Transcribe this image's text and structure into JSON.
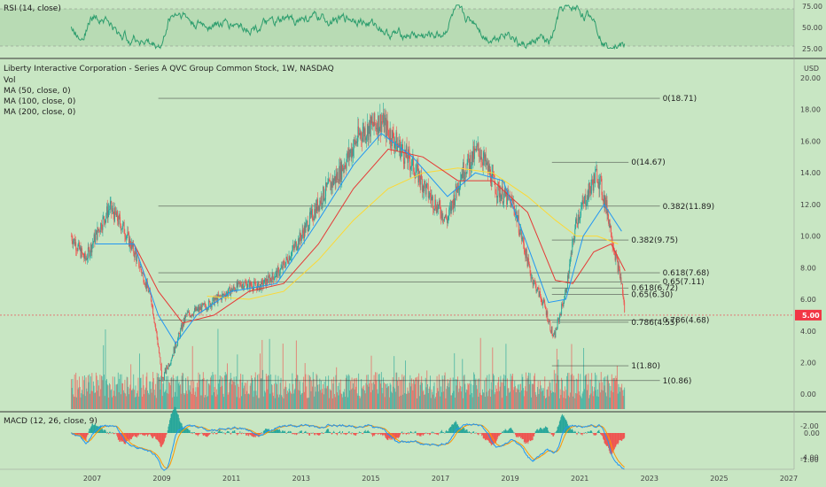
{
  "rsi": {
    "label": "RSI (14, close)",
    "ticks": [
      "75.00",
      "50.00",
      "25.00"
    ]
  },
  "main": {
    "title": "Liberty Interactive Corporation - Series A QVC Group Common Stock, 1W, NASDAQ",
    "indicators": [
      "Vol",
      "MA (50, close, 0)",
      "MA (100, close, 0)",
      "MA (200, close, 0)"
    ],
    "currency": "USD",
    "price_ticks": [
      "20.00",
      "18.00",
      "16.00",
      "14.00",
      "12.00",
      "10.00",
      "8.00",
      "6.00",
      "4.00",
      "2.00",
      "0.00",
      "-2.00",
      "-4.00"
    ],
    "last_price": "5.00"
  },
  "macd": {
    "label": "MACD (12, 26, close, 9)",
    "ticks": [
      "0.00",
      "-1.00"
    ]
  },
  "x_axis": {
    "ticks": [
      "2007",
      "2009",
      "2011",
      "2013",
      "2015",
      "2017",
      "2019",
      "2021",
      "2023",
      "2025",
      "2027"
    ]
  },
  "fib_labels": [
    "0(18.71)",
    "0(14.67)",
    "0.382(11.89)",
    "0.382(9.75)",
    "0.618(7.68)",
    "0.65(7.11)",
    "0.618(6.72)",
    "0.65(6.30)",
    "0.786(4.68)",
    "0.786(4.55)",
    "1(1.80)",
    "1(0.86)"
  ],
  "colors": {
    "background": "#c8e6c3",
    "candle_up": "#26a69a",
    "candle_down": "#ef5350",
    "ma50": "#2196f3",
    "ma100": "#e53935",
    "ma200": "#fdd835",
    "rsi_line": "#2e9e6e",
    "macd_line": "#2196f3",
    "signal_line": "#ff9800",
    "price_tag": "#f23645"
  },
  "chart_data": {
    "type": "line",
    "title": "Liberty Interactive Corporation - Series A QVC Group Common Stock, 1W, NASDAQ",
    "ylabel": "USD",
    "ylim": [
      -4.5,
      20
    ],
    "price_path": [
      {
        "x": 2006.4,
        "y": 10.0
      },
      {
        "x": 2006.8,
        "y": 8.5
      },
      {
        "x": 2007.2,
        "y": 10.5
      },
      {
        "x": 2007.5,
        "y": 11.8
      },
      {
        "x": 2007.9,
        "y": 10.5
      },
      {
        "x": 2008.3,
        "y": 8.5
      },
      {
        "x": 2008.7,
        "y": 6.0
      },
      {
        "x": 2008.9,
        "y": 3.0
      },
      {
        "x": 2009.0,
        "y": 0.86
      },
      {
        "x": 2009.3,
        "y": 2.5
      },
      {
        "x": 2009.7,
        "y": 5.0
      },
      {
        "x": 2010.2,
        "y": 5.5
      },
      {
        "x": 2010.8,
        "y": 6.3
      },
      {
        "x": 2011.3,
        "y": 7.0
      },
      {
        "x": 2011.8,
        "y": 6.8
      },
      {
        "x": 2012.4,
        "y": 7.8
      },
      {
        "x": 2013.0,
        "y": 10.0
      },
      {
        "x": 2013.6,
        "y": 12.5
      },
      {
        "x": 2014.1,
        "y": 14.0
      },
      {
        "x": 2014.7,
        "y": 16.5
      },
      {
        "x": 2015.3,
        "y": 17.3
      },
      {
        "x": 2015.7,
        "y": 16.0
      },
      {
        "x": 2016.2,
        "y": 14.5
      },
      {
        "x": 2016.7,
        "y": 12.5
      },
      {
        "x": 2017.2,
        "y": 11.0
      },
      {
        "x": 2017.6,
        "y": 14.0
      },
      {
        "x": 2018.1,
        "y": 15.5
      },
      {
        "x": 2018.6,
        "y": 13.0
      },
      {
        "x": 2019.1,
        "y": 12.0
      },
      {
        "x": 2019.6,
        "y": 7.5
      },
      {
        "x": 2020.0,
        "y": 5.5
      },
      {
        "x": 2020.25,
        "y": 3.5
      },
      {
        "x": 2020.6,
        "y": 6.5
      },
      {
        "x": 2020.9,
        "y": 11.0
      },
      {
        "x": 2021.2,
        "y": 12.5
      },
      {
        "x": 2021.5,
        "y": 14.0
      },
      {
        "x": 2021.8,
        "y": 11.5
      },
      {
        "x": 2022.0,
        "y": 9.0
      },
      {
        "x": 2022.2,
        "y": 7.0
      },
      {
        "x": 2022.3,
        "y": 5.0
      }
    ],
    "ma50": [
      {
        "x": 2007.1,
        "y": 9.5
      },
      {
        "x": 2008.2,
        "y": 9.5
      },
      {
        "x": 2008.9,
        "y": 5.0
      },
      {
        "x": 2009.4,
        "y": 3.2
      },
      {
        "x": 2010.0,
        "y": 5.0
      },
      {
        "x": 2011.0,
        "y": 6.5
      },
      {
        "x": 2012.3,
        "y": 7.0
      },
      {
        "x": 2013.5,
        "y": 11.0
      },
      {
        "x": 2014.5,
        "y": 14.5
      },
      {
        "x": 2015.3,
        "y": 16.5
      },
      {
        "x": 2016.2,
        "y": 15.0
      },
      {
        "x": 2017.2,
        "y": 12.5
      },
      {
        "x": 2018.0,
        "y": 14.0
      },
      {
        "x": 2018.8,
        "y": 13.5
      },
      {
        "x": 2019.4,
        "y": 10.0
      },
      {
        "x": 2020.1,
        "y": 5.8
      },
      {
        "x": 2020.6,
        "y": 6.0
      },
      {
        "x": 2021.1,
        "y": 10.0
      },
      {
        "x": 2021.7,
        "y": 12.0
      },
      {
        "x": 2022.2,
        "y": 10.3
      }
    ],
    "ma100": [
      {
        "x": 2008.2,
        "y": 9.5
      },
      {
        "x": 2008.9,
        "y": 6.5
      },
      {
        "x": 2009.6,
        "y": 4.5
      },
      {
        "x": 2010.5,
        "y": 5.0
      },
      {
        "x": 2011.5,
        "y": 6.5
      },
      {
        "x": 2012.5,
        "y": 7.0
      },
      {
        "x": 2013.5,
        "y": 9.5
      },
      {
        "x": 2014.5,
        "y": 13.0
      },
      {
        "x": 2015.5,
        "y": 15.5
      },
      {
        "x": 2016.5,
        "y": 15.0
      },
      {
        "x": 2017.5,
        "y": 13.5
      },
      {
        "x": 2018.5,
        "y": 13.5
      },
      {
        "x": 2019.5,
        "y": 11.5
      },
      {
        "x": 2020.3,
        "y": 7.2
      },
      {
        "x": 2020.8,
        "y": 7.0
      },
      {
        "x": 2021.4,
        "y": 9.0
      },
      {
        "x": 2021.9,
        "y": 9.5
      },
      {
        "x": 2022.3,
        "y": 7.8
      }
    ],
    "ma200": [
      {
        "x": 2010.3,
        "y": 6.2
      },
      {
        "x": 2011.5,
        "y": 6.0
      },
      {
        "x": 2012.5,
        "y": 6.5
      },
      {
        "x": 2013.5,
        "y": 8.5
      },
      {
        "x": 2014.5,
        "y": 11.0
      },
      {
        "x": 2015.5,
        "y": 13.0
      },
      {
        "x": 2016.5,
        "y": 14.0
      },
      {
        "x": 2017.5,
        "y": 14.3
      },
      {
        "x": 2018.5,
        "y": 14.0
      },
      {
        "x": 2019.5,
        "y": 12.5
      },
      {
        "x": 2020.3,
        "y": 11.0
      },
      {
        "x": 2020.9,
        "y": 10.0
      },
      {
        "x": 2021.5,
        "y": 10.0
      },
      {
        "x": 2022.1,
        "y": 9.5
      }
    ],
    "fib_levels": [
      {
        "label": "0(18.71)",
        "y": 18.71,
        "x0": 2008.9,
        "x1": 2023.3
      },
      {
        "label": "0(14.67)",
        "y": 14.67,
        "x0": 2020.2,
        "x1": 2022.4
      },
      {
        "label": "0.382(11.89)",
        "y": 11.89,
        "x0": 2008.9,
        "x1": 2023.3
      },
      {
        "label": "0.382(9.75)",
        "y": 9.75,
        "x0": 2020.2,
        "x1": 2022.4
      },
      {
        "label": "0.618(7.68)",
        "y": 7.68,
        "x0": 2008.9,
        "x1": 2023.3
      },
      {
        "label": "0.65(7.11)",
        "y": 7.11,
        "x0": 2008.9,
        "x1": 2023.3
      },
      {
        "label": "0.618(6.72)",
        "y": 6.72,
        "x0": 2020.2,
        "x1": 2022.4
      },
      {
        "label": "0.65(6.30)",
        "y": 6.3,
        "x0": 2020.2,
        "x1": 2022.4
      },
      {
        "label": "0.786(4.68)",
        "y": 4.68,
        "x0": 2008.9,
        "x1": 2023.3
      },
      {
        "label": "0.786(4.55)",
        "y": 4.55,
        "x0": 2020.2,
        "x1": 2022.4
      },
      {
        "label": "1(1.80)",
        "y": 1.8,
        "x0": 2020.2,
        "x1": 2022.4
      },
      {
        "label": "1(0.86)",
        "y": 0.86,
        "x0": 2008.9,
        "x1": 2023.3
      }
    ],
    "last_price": 5.0
  }
}
